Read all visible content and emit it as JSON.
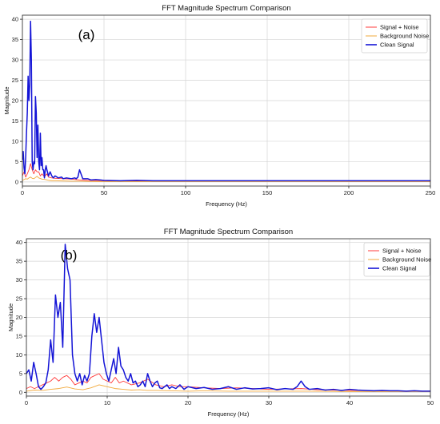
{
  "chart_data": [
    {
      "type": "line",
      "panel_label": "(a)",
      "title": "FFT Magnitude Spectrum Comparison",
      "xlabel": "Frequency (Hz)",
      "ylabel": "Magnitude",
      "xlim": [
        0,
        250
      ],
      "ylim": [
        -1,
        41
      ],
      "xticks": [
        0,
        50,
        100,
        150,
        200,
        250
      ],
      "yticks": [
        0,
        5,
        10,
        15,
        20,
        25,
        30,
        35,
        40
      ],
      "grid": true,
      "legend_position": "top-right",
      "series": [
        {
          "name": "Signal + Noise",
          "color": "#ff3b3b",
          "x": [
            0,
            1,
            2,
            3,
            4,
            5,
            6,
            7,
            8,
            9,
            10,
            11,
            12,
            13,
            14,
            15,
            16,
            18,
            20,
            25,
            30,
            35,
            40,
            45,
            50,
            60,
            80,
            100,
            150,
            200,
            250
          ],
          "y": [
            1.5,
            2.5,
            1.2,
            2.0,
            3.0,
            4.5,
            3.0,
            2.0,
            3.0,
            2.5,
            2.5,
            1.5,
            2.0,
            1.5,
            1.5,
            2.0,
            1.2,
            1.0,
            0.9,
            0.8,
            0.7,
            0.5,
            0.4,
            0.35,
            0.3,
            0.25,
            0.2,
            0.2,
            0.2,
            0.15,
            0.15
          ]
        },
        {
          "name": "Background Noise",
          "color": "#f2a93b",
          "x": [
            0,
            1,
            2,
            3,
            4,
            5,
            6,
            7,
            8,
            9,
            10,
            12,
            14,
            16,
            18,
            20,
            25,
            30,
            35,
            40,
            50,
            100,
            150,
            200,
            250
          ],
          "y": [
            0.4,
            0.6,
            0.8,
            0.7,
            1.0,
            1.2,
            0.9,
            0.8,
            1.1,
            1.4,
            1.0,
            0.7,
            0.6,
            0.4,
            0.3,
            0.3,
            0.25,
            0.2,
            0.2,
            0.15,
            0.1,
            0.1,
            0.1,
            0.1,
            0.1
          ]
        },
        {
          "name": "Clean Signal",
          "color": "#1414d6",
          "x": [
            0,
            0.5,
            1,
            1.5,
            2,
            2.5,
            3,
            3.5,
            4,
            4.5,
            5,
            5.5,
            6,
            6.5,
            7,
            7.5,
            8,
            8.5,
            9,
            9.5,
            10,
            10.5,
            11,
            11.5,
            12,
            12.5,
            13,
            13.5,
            14,
            14.5,
            15,
            16,
            17,
            18,
            19,
            20,
            22,
            24,
            25,
            27,
            30,
            32,
            33,
            34,
            35,
            37,
            40,
            42,
            45,
            50,
            60,
            70,
            80,
            100,
            120,
            150,
            180,
            200,
            220,
            250
          ],
          "y": [
            5.5,
            7.5,
            3.5,
            2.0,
            6.0,
            12.0,
            17.0,
            26.0,
            20.0,
            24.0,
            39.5,
            30.0,
            5.0,
            3.0,
            5.0,
            4.5,
            21.0,
            17.0,
            6.0,
            14.0,
            5.0,
            3.0,
            12.0,
            4.0,
            6.0,
            3.0,
            3.0,
            1.0,
            3.0,
            4.0,
            3.0,
            1.5,
            2.5,
            1.5,
            1.0,
            1.5,
            1.0,
            1.2,
            0.8,
            1.0,
            0.8,
            1.0,
            0.8,
            1.2,
            3.0,
            0.8,
            0.8,
            0.5,
            0.6,
            0.4,
            0.3,
            0.4,
            0.3,
            0.3,
            0.3,
            0.3,
            0.3,
            0.3,
            0.3,
            0.3
          ]
        }
      ]
    },
    {
      "type": "line",
      "panel_label": "(b)",
      "title": "FFT Magnitude Spectrum Comparison",
      "xlabel": "Frequency (Hz)",
      "ylabel": "Magnitude",
      "xlim": [
        0,
        50
      ],
      "ylim": [
        -1,
        41
      ],
      "xticks": [
        0,
        10,
        20,
        30,
        40,
        50
      ],
      "yticks": [
        0,
        5,
        10,
        15,
        20,
        25,
        30,
        35,
        40
      ],
      "grid": true,
      "legend_position": "top-right",
      "series": [
        {
          "name": "Signal + Noise",
          "color": "#ff3b3b",
          "x": [
            0,
            0.5,
            1,
            1.5,
            2,
            2.5,
            3,
            3.5,
            4,
            4.5,
            5,
            5.5,
            6,
            6.5,
            7,
            7.5,
            8,
            8.5,
            9,
            9.5,
            10,
            10.5,
            11,
            11.5,
            12,
            13,
            14,
            15,
            16,
            17,
            18,
            19,
            20,
            22,
            24,
            26,
            28,
            30,
            32,
            34,
            36,
            38,
            40,
            44,
            48,
            50
          ],
          "y": [
            1.0,
            1.5,
            1.0,
            1.5,
            2.0,
            2.5,
            3.0,
            4.0,
            3.0,
            4.0,
            4.5,
            3.5,
            2.0,
            2.5,
            3.0,
            2.5,
            4.0,
            4.5,
            5.0,
            3.5,
            3.0,
            2.5,
            4.0,
            2.5,
            3.0,
            2.0,
            2.5,
            3.5,
            2.0,
            1.5,
            2.0,
            1.5,
            1.5,
            1.2,
            1.0,
            1.2,
            1.0,
            0.8,
            0.9,
            1.0,
            0.7,
            0.6,
            0.5,
            0.4,
            0.3,
            0.3
          ]
        },
        {
          "name": "Background Noise",
          "color": "#f2a93b",
          "x": [
            0,
            1,
            2,
            3,
            4,
            5,
            6,
            7,
            8,
            9,
            10,
            11,
            12,
            13,
            14,
            15,
            16,
            18,
            20,
            22,
            25,
            30,
            35,
            40,
            45,
            50
          ],
          "y": [
            0.3,
            0.6,
            0.5,
            0.8,
            1.0,
            1.4,
            0.9,
            0.7,
            1.2,
            2.0,
            1.5,
            1.0,
            0.8,
            0.6,
            0.7,
            0.5,
            0.5,
            0.4,
            0.3,
            0.4,
            0.3,
            0.3,
            0.3,
            0.2,
            0.2,
            0.2
          ]
        },
        {
          "name": "Clean Signal",
          "color": "#1414d6",
          "x": [
            0,
            0.3,
            0.6,
            0.9,
            1.2,
            1.5,
            1.8,
            2.1,
            2.4,
            2.7,
            3.0,
            3.3,
            3.6,
            3.9,
            4.2,
            4.5,
            4.8,
            5.1,
            5.4,
            5.7,
            6.0,
            6.3,
            6.6,
            6.9,
            7.2,
            7.5,
            7.8,
            8.1,
            8.4,
            8.7,
            9.0,
            9.3,
            9.6,
            9.9,
            10.2,
            10.5,
            10.8,
            11.1,
            11.4,
            11.7,
            12.0,
            12.3,
            12.6,
            12.9,
            13.2,
            13.5,
            13.8,
            14.1,
            14.4,
            14.7,
            15.0,
            15.3,
            15.6,
            15.9,
            16.2,
            16.5,
            16.8,
            17.1,
            17.4,
            17.7,
            18.0,
            18.5,
            19.0,
            19.5,
            20.0,
            21.0,
            22.0,
            23.0,
            24.0,
            25.0,
            26.0,
            27.0,
            28.0,
            29.0,
            30.0,
            31.0,
            32.0,
            33.0,
            33.5,
            34.0,
            34.5,
            35.0,
            36.0,
            37.0,
            38.0,
            39.0,
            40.0,
            41.0,
            42.0,
            43.0,
            44.0,
            45.0,
            46.0,
            47.0,
            48.0,
            49.0,
            50.0
          ],
          "y": [
            5.0,
            6.0,
            3.0,
            8.0,
            5.0,
            1.5,
            0.8,
            1.5,
            2.5,
            6.0,
            14.0,
            8.0,
            26.0,
            20.0,
            24.0,
            12.0,
            39.5,
            33.0,
            30.0,
            10.0,
            5.0,
            3.0,
            5.0,
            2.0,
            4.5,
            3.0,
            5.0,
            15.0,
            21.0,
            16.0,
            20.0,
            14.0,
            8.0,
            5.0,
            3.0,
            6.0,
            9.0,
            5.0,
            12.0,
            7.0,
            6.0,
            4.0,
            3.0,
            5.0,
            2.5,
            3.0,
            1.5,
            2.0,
            3.0,
            1.5,
            5.0,
            3.0,
            1.5,
            2.5,
            3.0,
            1.2,
            1.0,
            1.5,
            2.0,
            1.0,
            1.5,
            1.0,
            2.0,
            0.8,
            1.5,
            1.0,
            1.3,
            0.8,
            1.0,
            1.5,
            0.8,
            1.2,
            0.9,
            1.0,
            1.2,
            0.7,
            1.0,
            0.8,
            1.5,
            3.0,
            1.5,
            0.8,
            1.0,
            0.6,
            0.8,
            0.5,
            0.8,
            0.6,
            0.5,
            0.4,
            0.5,
            0.4,
            0.4,
            0.3,
            0.4,
            0.3,
            0.3
          ]
        }
      ]
    }
  ]
}
